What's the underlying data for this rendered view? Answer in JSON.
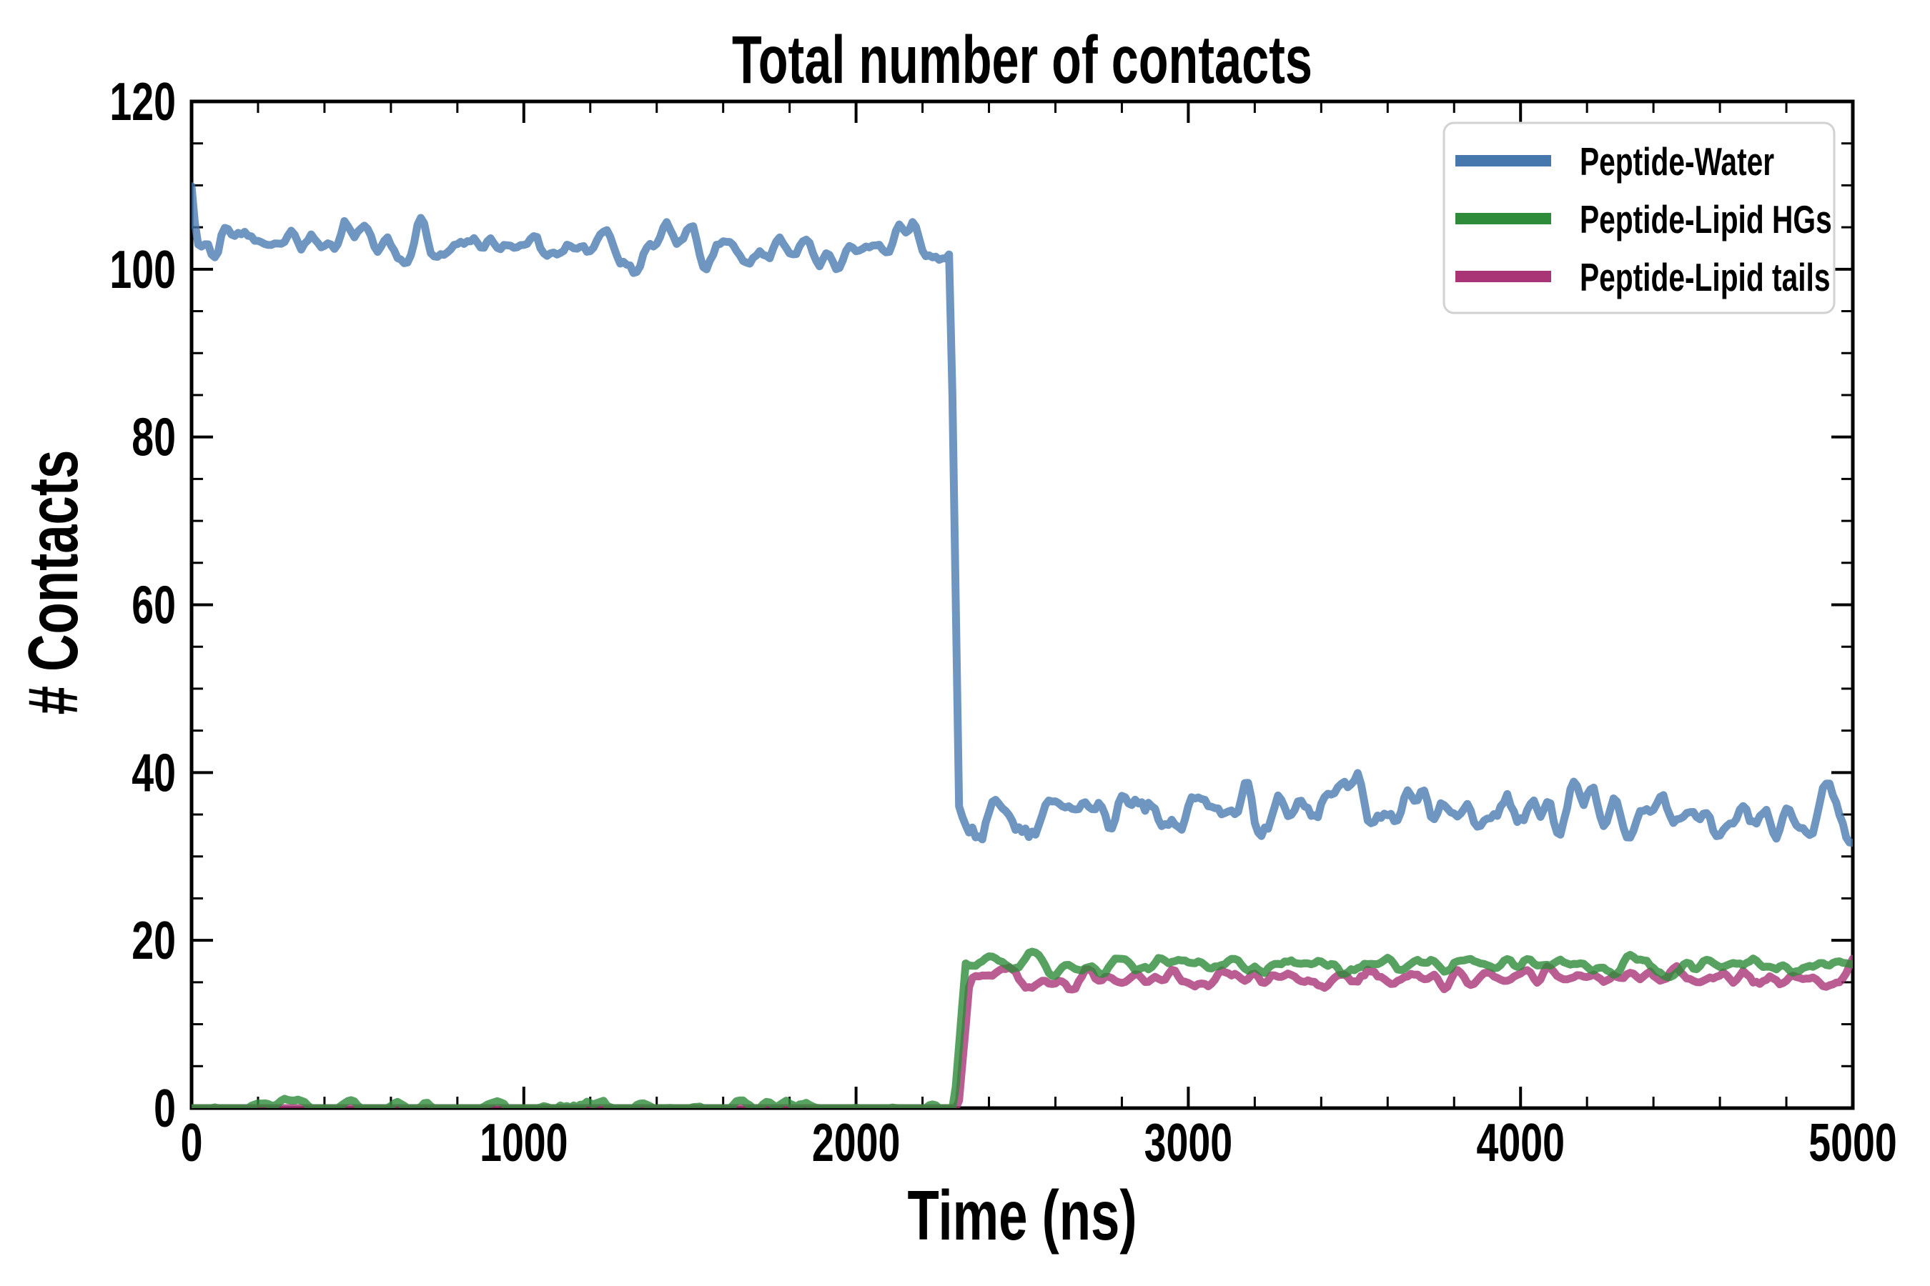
{
  "figure": {
    "background": "#ffffff",
    "axis_color": "#000000"
  },
  "chart_data": {
    "type": "line",
    "title": "Total number of contacts",
    "xlabel": "Time (ns)",
    "ylabel": "# Contacts",
    "xlim": [
      0,
      5000
    ],
    "ylim": [
      0,
      120
    ],
    "x_major_ticks": [
      0,
      1000,
      2000,
      3000,
      4000,
      5000
    ],
    "y_major_ticks": [
      0,
      20,
      40,
      60,
      80,
      100,
      120
    ],
    "x_minor_step": 200,
    "y_minor_step": 5,
    "grid": false,
    "legend": {
      "position": "upper right",
      "border_color": "#d2d2d2",
      "fill": "#ffffff"
    },
    "sample_step_ns": 10,
    "series": [
      {
        "name": "Peptide-Water",
        "color": "#4678ae",
        "alpha": 0.78,
        "seed": 7,
        "keypoints": [
          {
            "t": 0,
            "v": 103.0
          },
          {
            "t": 2283,
            "v": 103.0
          },
          {
            "t": 2310,
            "v": 35.5
          },
          {
            "t": 5000,
            "v": 35.3
          }
        ],
        "noise_amp": [
          {
            "t": 0,
            "a": 1.25
          },
          {
            "t": 2280,
            "a": 1.25
          },
          {
            "t": 2315,
            "a": 1.7
          },
          {
            "t": 5000,
            "a": 1.7
          }
        ],
        "summary": "steady at ~103 contacts from 0 to ~2300 ns, sharp drop to ~35 contacts until 5000 ns"
      },
      {
        "name": "Peptide-Lipid HGs",
        "color": "#2e8b3a",
        "alpha": 0.8,
        "seed": 21,
        "clamp_min": 0,
        "keypoints": [
          {
            "t": 0,
            "v": 0
          },
          {
            "t": 2295,
            "v": 0
          },
          {
            "t": 2330,
            "v": 17.3
          },
          {
            "t": 5000,
            "v": 16.8
          }
        ],
        "noise_amp": [
          {
            "t": 0,
            "a": 0.5
          },
          {
            "t": 2292,
            "a": 0.5
          },
          {
            "t": 2335,
            "a": 0.6
          },
          {
            "t": 5000,
            "a": 0.6
          }
        ],
        "summary": "~0 contacts (occasional small bumps up to ~1.5) until ~2300 ns, jumps to ~17 contacts"
      },
      {
        "name": "Peptide-Lipid tails",
        "color": "#a93577",
        "alpha": 0.8,
        "seed": 40,
        "clamp_min": 0,
        "keypoints": [
          {
            "t": 0,
            "v": 0
          },
          {
            "t": 2308,
            "v": 0
          },
          {
            "t": 2342,
            "v": 15.6
          },
          {
            "t": 5000,
            "v": 15.5
          }
        ],
        "noise_amp": [
          {
            "t": 0,
            "a": 0
          },
          {
            "t": 2308,
            "a": 0
          },
          {
            "t": 2345,
            "a": 0.6
          },
          {
            "t": 5000,
            "a": 0.6
          }
        ],
        "summary": "flat at 0 contacts until ~2310 ns, jumps to ~15.5 contacts"
      }
    ]
  }
}
